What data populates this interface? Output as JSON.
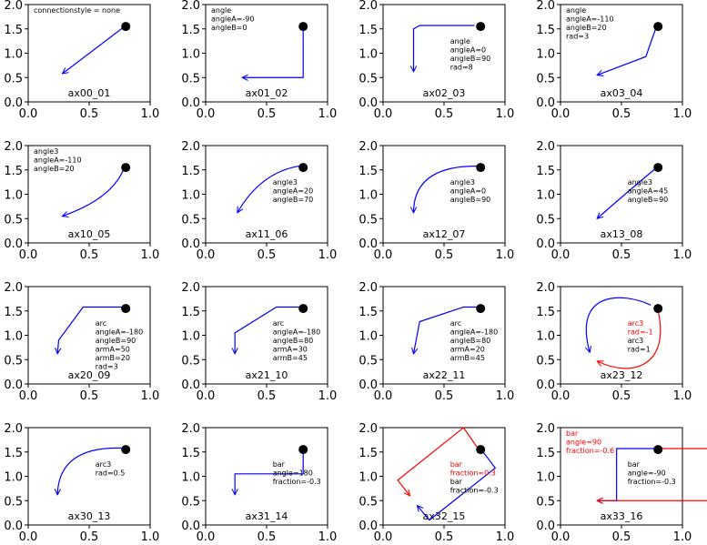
{
  "chart_data": {
    "type": "line",
    "grid": false,
    "xlim": [
      0,
      1
    ],
    "ylim": [
      0,
      2
    ],
    "xticks": [
      "0.0",
      "0.5",
      "1.0"
    ],
    "yticks": [
      "0.0",
      "0.5",
      "1.0",
      "1.5",
      "2.0"
    ],
    "marker_point": {
      "x": 0.8,
      "y": 1.55,
      "color": "#000000"
    },
    "colors": {
      "blue": "#0000ff",
      "red": "#ff0000",
      "text": "#000000"
    },
    "panels": [
      {
        "label": "ax00_01",
        "text": [
          {
            "t": "connectionstyle = none",
            "c": "#000000"
          }
        ],
        "paths": [
          {
            "c": "#0000ff",
            "d": "L",
            "pts": [
              [
                0.78,
                1.53
              ],
              [
                0.28,
                0.58
              ]
            ]
          }
        ]
      },
      {
        "label": "ax01_02",
        "text": [
          {
            "t": "angle",
            "c": "#000000"
          },
          {
            "t": "angleA=-90",
            "c": "#000000"
          },
          {
            "t": "angleB=0",
            "c": "#000000"
          }
        ],
        "paths": [
          {
            "c": "#0000ff",
            "d": "L",
            "pts": [
              [
                0.8,
                1.5
              ],
              [
                0.8,
                0.5
              ],
              [
                0.3,
                0.5
              ]
            ]
          }
        ]
      },
      {
        "label": "ax02_03",
        "text": [
          {
            "t": "angle",
            "c": "#000000"
          },
          {
            "t": "angleA=0",
            "c": "#000000"
          },
          {
            "t": "angleB=90",
            "c": "#000000"
          },
          {
            "t": "rad=8",
            "c": "#000000"
          }
        ],
        "paths": [
          {
            "c": "#0000ff",
            "d": "L",
            "pts": [
              [
                0.75,
                1.57
              ],
              [
                0.3,
                1.57
              ],
              [
                0.25,
                1.5
              ],
              [
                0.25,
                0.62
              ]
            ]
          }
        ]
      },
      {
        "label": "ax03_04",
        "text": [
          {
            "t": "angle",
            "c": "#000000"
          },
          {
            "t": "angleA=-110",
            "c": "#000000"
          },
          {
            "t": "angleB=20",
            "c": "#000000"
          },
          {
            "t": "rad=3",
            "c": "#000000"
          }
        ],
        "paths": [
          {
            "c": "#0000ff",
            "d": "L",
            "pts": [
              [
                0.78,
                1.5
              ],
              [
                0.7,
                0.93
              ],
              [
                0.3,
                0.55
              ]
            ]
          }
        ]
      },
      {
        "label": "ax10_05",
        "text": [
          {
            "t": "angle3",
            "c": "#000000"
          },
          {
            "t": "angleA=-110",
            "c": "#000000"
          },
          {
            "t": "angleB=20",
            "c": "#000000"
          }
        ],
        "paths": [
          {
            "c": "#0000ff",
            "d": "Q",
            "pts": [
              [
                0.78,
                1.5
              ],
              [
                0.68,
                0.9
              ],
              [
                0.28,
                0.55
              ]
            ]
          }
        ]
      },
      {
        "label": "ax11_06",
        "text": [
          {
            "t": "angle3",
            "c": "#000000"
          },
          {
            "t": "angleA=20",
            "c": "#000000"
          },
          {
            "t": "angleB=70",
            "c": "#000000"
          }
        ],
        "paths": [
          {
            "c": "#0000ff",
            "d": "Q",
            "pts": [
              [
                0.77,
                1.58
              ],
              [
                0.45,
                1.45
              ],
              [
                0.26,
                0.62
              ]
            ]
          }
        ]
      },
      {
        "label": "ax12_07",
        "text": [
          {
            "t": "angle3",
            "c": "#000000"
          },
          {
            "t": "angleA=0",
            "c": "#000000"
          },
          {
            "t": "angleB=90",
            "c": "#000000"
          }
        ],
        "paths": [
          {
            "c": "#0000ff",
            "d": "Q",
            "pts": [
              [
                0.77,
                1.58
              ],
              [
                0.25,
                1.58
              ],
              [
                0.25,
                0.62
              ]
            ]
          }
        ]
      },
      {
        "label": "ax13_08",
        "text": [
          {
            "t": "angle3",
            "c": "#000000"
          },
          {
            "t": "angleA=45",
            "c": "#000000"
          },
          {
            "t": "angleB=90",
            "c": "#000000"
          }
        ],
        "paths": [
          {
            "c": "#0000ff",
            "d": "Q",
            "pts": [
              [
                0.78,
                1.53
              ],
              [
                0.55,
                1.05
              ],
              [
                0.3,
                0.5
              ]
            ]
          }
        ]
      },
      {
        "label": "ax20_09",
        "text": [
          {
            "t": "arc",
            "c": "#000000"
          },
          {
            "t": "angleA=-180",
            "c": "#000000"
          },
          {
            "t": "angleB=90",
            "c": "#000000"
          },
          {
            "t": "armA=50",
            "c": "#000000"
          },
          {
            "t": "armB=20",
            "c": "#000000"
          },
          {
            "t": "rad=3",
            "c": "#000000"
          }
        ],
        "paths": [
          {
            "c": "#0000ff",
            "d": "L",
            "pts": [
              [
                0.77,
                1.58
              ],
              [
                0.45,
                1.58
              ],
              [
                0.25,
                0.9
              ],
              [
                0.24,
                0.62
              ]
            ]
          }
        ]
      },
      {
        "label": "ax21_10",
        "text": [
          {
            "t": "arc",
            "c": "#000000"
          },
          {
            "t": "angleA=-180",
            "c": "#000000"
          },
          {
            "t": "angleB=80",
            "c": "#000000"
          },
          {
            "t": "armA=30",
            "c": "#000000"
          },
          {
            "t": "armB=45",
            "c": "#000000"
          }
        ],
        "paths": [
          {
            "c": "#0000ff",
            "d": "L",
            "pts": [
              [
                0.77,
                1.58
              ],
              [
                0.58,
                1.58
              ],
              [
                0.24,
                1.05
              ],
              [
                0.24,
                0.62
              ]
            ]
          }
        ]
      },
      {
        "label": "ax22_11",
        "text": [
          {
            "t": "arc",
            "c": "#000000"
          },
          {
            "t": "angleA=-180",
            "c": "#000000"
          },
          {
            "t": "angleB=80",
            "c": "#000000"
          },
          {
            "t": "armA=20",
            "c": "#000000"
          },
          {
            "t": "armB=45",
            "c": "#000000"
          }
        ],
        "paths": [
          {
            "c": "#0000ff",
            "d": "L",
            "pts": [
              [
                0.77,
                1.58
              ],
              [
                0.66,
                1.58
              ],
              [
                0.3,
                1.28
              ],
              [
                0.25,
                0.62
              ]
            ]
          }
        ]
      },
      {
        "label": "ax23_12",
        "text": [
          {
            "t": "arc3",
            "c": "#ff0000"
          },
          {
            "t": "rad=-1",
            "c": "#ff0000"
          },
          {
            "t": "arc3",
            "c": "#000000"
          },
          {
            "t": "rad=1",
            "c": "#000000"
          }
        ],
        "paths": [
          {
            "c": "#0000ff",
            "d": "C",
            "pts": [
              [
                0.74,
                1.62
              ],
              [
                0.5,
                1.9
              ],
              [
                0.1,
                1.9
              ],
              [
                0.24,
                0.65
              ]
            ]
          },
          {
            "c": "#ff0000",
            "d": "C",
            "pts": [
              [
                0.8,
                1.5
              ],
              [
                0.9,
                0.4
              ],
              [
                0.6,
                0.1
              ],
              [
                0.3,
                0.47
              ]
            ]
          }
        ]
      },
      {
        "label": "ax30_13",
        "text": [
          {
            "t": "arc3",
            "c": "#000000"
          },
          {
            "t": "rad=0.5",
            "c": "#000000"
          }
        ],
        "paths": [
          {
            "c": "#0000ff",
            "d": "Q",
            "pts": [
              [
                0.77,
                1.58
              ],
              [
                0.25,
                1.62
              ],
              [
                0.24,
                0.62
              ]
            ]
          }
        ]
      },
      {
        "label": "ax31_14",
        "text": [
          {
            "t": "bar",
            "c": "#000000"
          },
          {
            "t": "angle=180",
            "c": "#000000"
          },
          {
            "t": "fraction=-0.3",
            "c": "#000000"
          }
        ],
        "paths": [
          {
            "c": "#0000ff",
            "d": "L",
            "pts": [
              [
                0.8,
                1.5
              ],
              [
                0.8,
                1.05
              ],
              [
                0.24,
                1.05
              ],
              [
                0.24,
                0.62
              ]
            ]
          }
        ]
      },
      {
        "label": "ax32_15",
        "text": [
          {
            "t": "bar",
            "c": "#ff0000"
          },
          {
            "t": "fraction=0.3",
            "c": "#ff0000"
          },
          {
            "t": "bar",
            "c": "#000000"
          },
          {
            "t": "fraction=-0.3",
            "c": "#000000"
          }
        ],
        "paths": [
          {
            "c": "#ff0000",
            "d": "L",
            "pts": [
              [
                0.77,
                1.6
              ],
              [
                0.66,
                2.0
              ],
              [
                0.12,
                0.92
              ],
              [
                0.22,
                0.6
              ]
            ]
          },
          {
            "c": "#0000ff",
            "d": "L",
            "pts": [
              [
                0.82,
                1.5
              ],
              [
                0.92,
                1.17
              ],
              [
                0.38,
                0.1
              ],
              [
                0.28,
                0.4
              ]
            ]
          }
        ]
      },
      {
        "label": "ax33_16",
        "text": [
          {
            "t": "bar",
            "c": "#ff0000"
          },
          {
            "t": "angle=90",
            "c": "#ff0000"
          },
          {
            "t": "fraction=-0.6",
            "c": "#ff0000"
          },
          {
            "t": "bar",
            "c": "#000000"
          },
          {
            "t": "angle=-90",
            "c": "#000000"
          },
          {
            "t": "fraction=-0.3",
            "c": "#000000"
          }
        ],
        "paths": [
          {
            "c": "#0000ff",
            "d": "L",
            "pts": [
              [
                0.77,
                1.57
              ],
              [
                0.46,
                1.57
              ],
              [
                0.46,
                0.5
              ],
              [
                0.3,
                0.5
              ]
            ]
          },
          {
            "c": "#ff0000",
            "d": "L",
            "pts": [
              [
                0.83,
                1.57
              ],
              [
                1.3,
                1.57
              ],
              [
                1.3,
                0.5
              ],
              [
                0.3,
                0.5
              ]
            ]
          }
        ]
      }
    ]
  }
}
